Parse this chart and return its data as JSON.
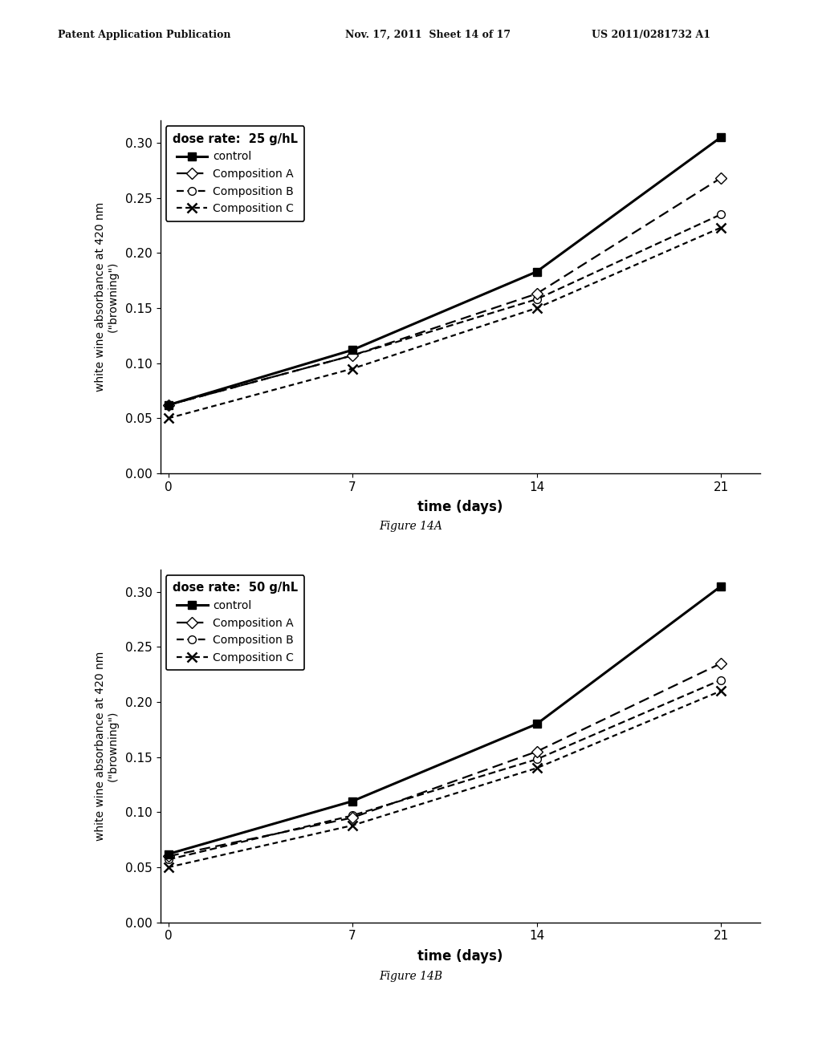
{
  "time": [
    0,
    7,
    14,
    21
  ],
  "chart_a": {
    "dose_label": "dose rate:  25 g/hL",
    "control": [
      0.062,
      0.112,
      0.183,
      0.305
    ],
    "comp_a": [
      0.062,
      0.107,
      0.163,
      0.268
    ],
    "comp_b": [
      0.062,
      0.107,
      0.158,
      0.235
    ],
    "comp_c": [
      0.05,
      0.095,
      0.15,
      0.223
    ]
  },
  "chart_b": {
    "dose_label": "dose rate:  50 g/hL",
    "control": [
      0.062,
      0.11,
      0.18,
      0.305
    ],
    "comp_a": [
      0.06,
      0.095,
      0.155,
      0.235
    ],
    "comp_b": [
      0.057,
      0.097,
      0.148,
      0.22
    ],
    "comp_c": [
      0.05,
      0.088,
      0.14,
      0.21
    ]
  },
  "ylabel": "white wine absorbance at 420 nm\n(\"browning\")",
  "xlabel": "time (days)",
  "figure_a_caption": "Figure 14A",
  "figure_b_caption": "Figure 14B",
  "header_left": "Patent Application Publication",
  "header_mid": "Nov. 17, 2011  Sheet 14 of 17",
  "header_right": "US 2011/0281732 A1",
  "ylim": [
    0.0,
    0.32
  ],
  "yticks": [
    0.0,
    0.05,
    0.1,
    0.15,
    0.2,
    0.25,
    0.3
  ],
  "xticks": [
    0,
    7,
    14,
    21
  ],
  "xlim": [
    -0.3,
    22.5
  ]
}
